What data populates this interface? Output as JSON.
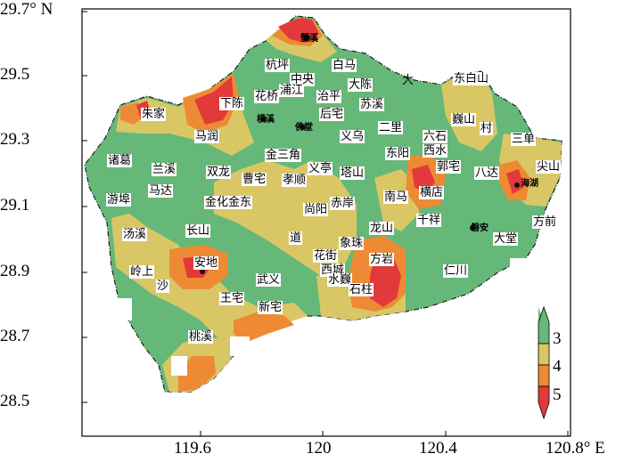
{
  "axes": {
    "y_ticks": [
      "29.7° N",
      "29.5",
      "29.3",
      "29.1",
      "28.9",
      "28.7",
      "28.5"
    ],
    "x_ticks": [
      "119.6",
      "120",
      "120.4",
      "120.8° E"
    ]
  },
  "legend": {
    "labels": [
      "3",
      "4",
      "5"
    ],
    "colors": [
      "#66b878",
      "#d9c766",
      "#ee8a33",
      "#e23a3a"
    ]
  },
  "places": [
    {
      "id": "hangping",
      "text": "杭坪"
    },
    {
      "id": "baima",
      "text": "白马"
    },
    {
      "id": "zhongyang",
      "text": "中央"
    },
    {
      "id": "dachen",
      "text": "大陈"
    },
    {
      "id": "da",
      "text": "大"
    },
    {
      "id": "dongbaishan",
      "text": "东白山"
    },
    {
      "id": "zhujia",
      "text": "朱家"
    },
    {
      "id": "xiachen",
      "text": "下陈"
    },
    {
      "id": "huaqiao",
      "text": "花桥"
    },
    {
      "id": "pujiang",
      "text": "浦江"
    },
    {
      "id": "zhiping",
      "text": "治平"
    },
    {
      "id": "suxi",
      "text": "苏溪"
    },
    {
      "id": "houzhai",
      "text": "后宅"
    },
    {
      "id": "weishan",
      "text": "巍山"
    },
    {
      "id": "cun",
      "text": "村"
    },
    {
      "id": "erli",
      "text": "二里"
    },
    {
      "id": "yiwu",
      "text": "义乌"
    },
    {
      "id": "liushi",
      "text": "六石"
    },
    {
      "id": "sandan",
      "text": "三单"
    },
    {
      "id": "marun",
      "text": "马润"
    },
    {
      "id": "jinsanjiao",
      "text": "金三角"
    },
    {
      "id": "xishui",
      "text": "西水"
    },
    {
      "id": "zhuge",
      "text": "诸葛"
    },
    {
      "id": "lanxi",
      "text": "兰溪"
    },
    {
      "id": "shuanglong",
      "text": "双龙"
    },
    {
      "id": "yiting",
      "text": "义亭"
    },
    {
      "id": "dongyang",
      "text": "东阳"
    },
    {
      "id": "guozhai",
      "text": "郭宅"
    },
    {
      "id": "jianshan",
      "text": "尖山"
    },
    {
      "id": "caozhai",
      "text": "曹宅"
    },
    {
      "id": "xiaoshun",
      "text": "孝顺"
    },
    {
      "id": "tashan",
      "text": "塔山"
    },
    {
      "id": "bada",
      "text": "八达"
    },
    {
      "id": "mada",
      "text": "马达"
    },
    {
      "id": "youfu",
      "text": "游埠"
    },
    {
      "id": "jinhuajindong",
      "text": "金化金东"
    },
    {
      "id": "chian",
      "text": "赤岸"
    },
    {
      "id": "nanma",
      "text": "南马"
    },
    {
      "id": "hengdian",
      "text": "横店"
    },
    {
      "id": "shangyang",
      "text": "尚阳"
    },
    {
      "id": "qianxiang",
      "text": "千祥"
    },
    {
      "id": "fangqian",
      "text": "方前"
    },
    {
      "id": "tangxi",
      "text": "汤溪"
    },
    {
      "id": "changshan",
      "text": "长山"
    },
    {
      "id": "longshan",
      "text": "龙山"
    },
    {
      "id": "dadao",
      "text": "道"
    },
    {
      "id": "xiangzhu",
      "text": "象珠"
    },
    {
      "id": "datang",
      "text": "大堂"
    },
    {
      "id": "huajie",
      "text": "花街"
    },
    {
      "id": "fangyan",
      "text": "方岩"
    },
    {
      "id": "anndi",
      "text": "安地"
    },
    {
      "id": "xicheng",
      "text": "西城"
    },
    {
      "id": "lingshang",
      "text": "岭上"
    },
    {
      "id": "sha",
      "text": "沙"
    },
    {
      "id": "renchuan",
      "text": "仁川"
    },
    {
      "id": "wuyi",
      "text": "武义"
    },
    {
      "id": "shuiqi",
      "text": "水巍"
    },
    {
      "id": "shizhu",
      "text": "石柱"
    },
    {
      "id": "wangzhai",
      "text": "王宅"
    },
    {
      "id": "xinzhai",
      "text": "新宅"
    },
    {
      "id": "taoxi",
      "text": "桃溪"
    },
    {
      "id": "s_top",
      "text": "蟹溪"
    },
    {
      "id": "s_hengxi",
      "text": "横溪"
    },
    {
      "id": "s_zhuhua",
      "text": "佛堂"
    },
    {
      "id": "s_haihu",
      "text": "海湖"
    },
    {
      "id": "s_panan",
      "text": "磐安"
    }
  ]
}
